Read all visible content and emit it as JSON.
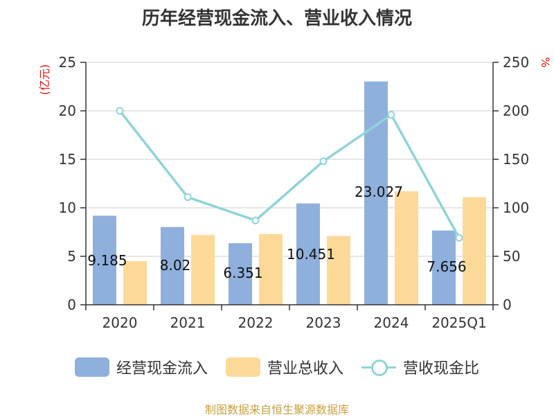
{
  "chart_data": {
    "type": "bar",
    "title": "历年经营现金流入、营业收入情况",
    "categories": [
      "2020",
      "2021",
      "2022",
      "2023",
      "2024",
      "2025Q1"
    ],
    "left_unit": "(亿元)",
    "right_unit": "%",
    "left_ylim": [
      0,
      25
    ],
    "left_ticks": [
      "0",
      "5",
      "10",
      "15",
      "20",
      "25"
    ],
    "right_ylim": [
      0,
      250
    ],
    "right_ticks": [
      "0",
      "50",
      "100",
      "150",
      "200",
      "250"
    ],
    "grid": true,
    "legend_position": "bottom",
    "series": [
      {
        "name": "经营现金流入",
        "kind": "bar",
        "axis": "left",
        "color": "#8fb0dc",
        "values": [
          9.185,
          8.02,
          6.351,
          10.451,
          23.027,
          7.656
        ],
        "labels": [
          "9.185",
          "8.02",
          "6.351",
          "10.451",
          "23.027",
          "7.656"
        ]
      },
      {
        "name": "营业总收入",
        "kind": "bar",
        "axis": "left",
        "color": "#fdd998",
        "values": [
          4.5,
          7.2,
          7.3,
          7.1,
          11.7,
          11.1
        ]
      },
      {
        "name": "营收现金比",
        "kind": "line",
        "axis": "right",
        "color": "#8fd4d8",
        "values": [
          200,
          111,
          87,
          148,
          196,
          69
        ]
      }
    ]
  },
  "source": "制图数据来自恒生聚源数据库"
}
